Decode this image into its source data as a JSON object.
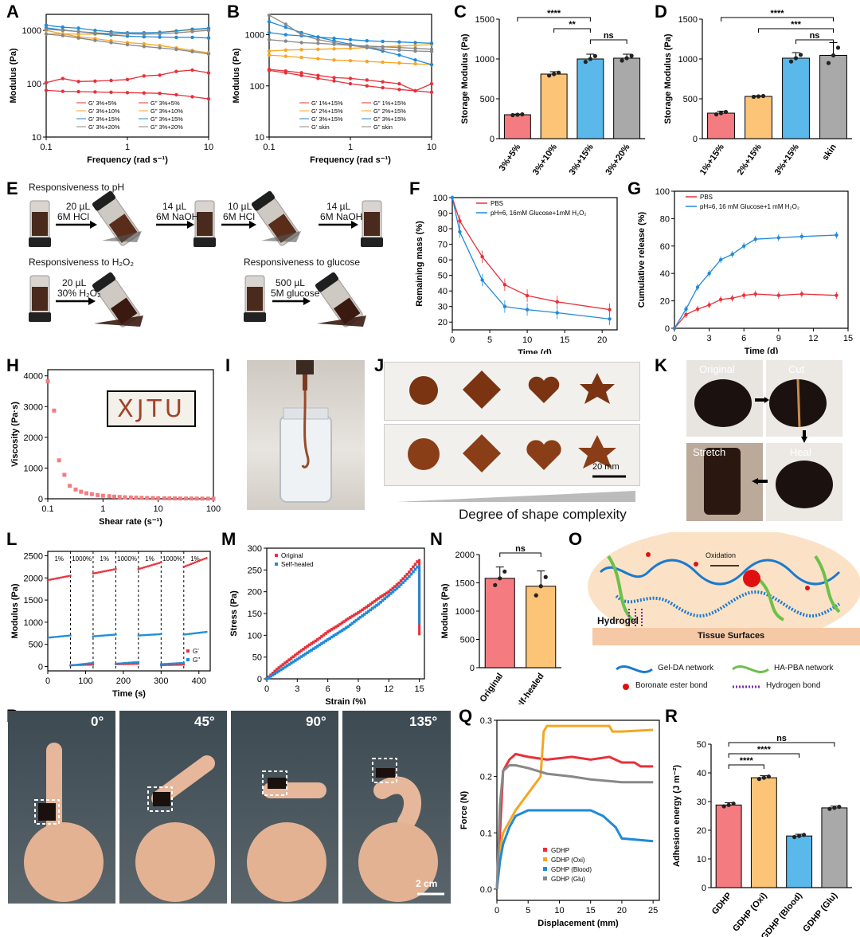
{
  "panel_labels": {
    "A": "A",
    "B": "B",
    "C": "C",
    "D": "D",
    "E": "E",
    "F": "F",
    "G": "G",
    "H": "H",
    "I": "I",
    "J": "J",
    "K": "K",
    "L": "L",
    "M": "M",
    "N": "N",
    "O": "O",
    "P": "P",
    "Q": "Q",
    "R": "R"
  },
  "colors": {
    "red": "#e8303a",
    "orange": "#f5a623",
    "blue": "#1f8ad8",
    "gray": "#888888",
    "bar_red": "#f47c80",
    "bar_orange": "#fbc477",
    "bar_blue": "#5bb8ea",
    "bar_gray": "#a9a9a9"
  },
  "panel_e": {
    "ph_title": "Responsiveness to pH",
    "h2o2_title": "Responsiveness to H₂O₂",
    "glucose_title": "Responsiveness to glucose",
    "steps": [
      {
        "line1": "20 µL",
        "line2": "6M HCl"
      },
      {
        "line1": "14 µL",
        "line2": "6M NaOH"
      },
      {
        "line1": "10 µL",
        "line2": "6M HCl"
      },
      {
        "line1": "14 µL",
        "line2": "6M NaOH"
      },
      {
        "line1": "20 µL",
        "line2": "30% H₂O₂"
      },
      {
        "line1": "500 µL",
        "line2": "5M glucose"
      }
    ]
  },
  "panel_h": {
    "inset_text": "XJTU"
  },
  "panel_j": {
    "scale": "20 mm",
    "caption": "Degree of shape complexity"
  },
  "panel_k": {
    "original": "Original",
    "cut": "Cut",
    "heal": "Heal",
    "stretch": "Stretch"
  },
  "panel_o": {
    "oxidation": "Oxidation",
    "hydrogel": "Hydrogel",
    "tissue": "Tissue Surfaces",
    "legend": [
      "Gel-DA network",
      "HA-PBA network",
      "Boronate ester bond",
      "Hydrogen bond"
    ]
  },
  "panel_p": {
    "angles": [
      "0°",
      "45°",
      "90°",
      "135°"
    ],
    "scale": "2 cm"
  },
  "chart_data": [
    {
      "id": "A",
      "type": "line",
      "xlabel": "Frequency (rad s⁻¹)",
      "ylabel": "Modulus (Pa)",
      "xscale": "log",
      "yscale": "log",
      "xlim": [
        0.1,
        10
      ],
      "ylim": [
        10,
        2000
      ],
      "xticks": [
        "0.1",
        "1",
        "10"
      ],
      "yticks": [
        "10",
        "100",
        "1000"
      ],
      "legend_position": "bottom",
      "x": [
        0.1,
        0.16,
        0.25,
        0.4,
        0.63,
        1,
        1.6,
        2.5,
        4,
        6.3,
        10
      ],
      "series": [
        {
          "name": "G' 3%+5%",
          "values": [
            75,
            72,
            71,
            70,
            69,
            68,
            67,
            66,
            62,
            57,
            52
          ]
        },
        {
          "name": "G\" 3%+5%",
          "values": [
            105,
            125,
            110,
            112,
            115,
            120,
            140,
            145,
            170,
            180,
            160
          ]
        },
        {
          "name": "G' 3%+10%",
          "values": [
            1000,
            860,
            760,
            700,
            640,
            590,
            560,
            520,
            470,
            420,
            380
          ]
        },
        {
          "name": "G\" 3%+10%",
          "values": [
            860,
            860,
            850,
            850,
            850,
            860,
            880,
            920,
            980,
            1020,
            1070
          ]
        },
        {
          "name": "G' 3%+15%",
          "values": [
            1120,
            1020,
            950,
            880,
            820,
            780,
            760,
            750,
            740,
            740,
            720
          ]
        },
        {
          "name": "G\" 3%+15%",
          "values": [
            1250,
            1150,
            1100,
            1000,
            940,
            900,
            900,
            920,
            970,
            1050,
            1100
          ]
        },
        {
          "name": "G' 3%+20%",
          "values": [
            850,
            800,
            720,
            650,
            590,
            540,
            500,
            470,
            440,
            400,
            360
          ]
        },
        {
          "name": "G\" 3%+20%",
          "values": [
            1050,
            1000,
            950,
            900,
            870,
            860,
            850,
            860,
            900,
            950,
            1000
          ]
        }
      ]
    },
    {
      "id": "B",
      "type": "line",
      "xlabel": "Frequency (rad s⁻¹)",
      "ylabel": "Modulus (Pa)",
      "xscale": "log",
      "yscale": "log",
      "xlim": [
        0.1,
        10
      ],
      "ylim": [
        10,
        2500
      ],
      "xticks": [
        "0.1",
        "1",
        "10"
      ],
      "yticks": [
        "10",
        "100",
        "1000"
      ],
      "legend_position": "bottom",
      "x": [
        0.1,
        0.16,
        0.25,
        0.4,
        0.63,
        1,
        1.6,
        2.5,
        4,
        6.3,
        10
      ],
      "series": [
        {
          "name": "G' 1%+15%",
          "values": [
            200,
            180,
            160,
            140,
            125,
            110,
            100,
            92,
            85,
            80,
            75
          ]
        },
        {
          "name": "G\" 1%+15%",
          "values": [
            210,
            195,
            180,
            160,
            145,
            140,
            130,
            120,
            110,
            80,
            110
          ]
        },
        {
          "name": "G' 2%+15%",
          "values": [
            480,
            500,
            510,
            520,
            530,
            540,
            560,
            580,
            600,
            620,
            640
          ]
        },
        {
          "name": "G\" 2%+15%",
          "values": [
            400,
            380,
            360,
            340,
            320,
            310,
            300,
            290,
            280,
            270,
            260
          ]
        },
        {
          "name": "G' 3%+15%",
          "values": [
            1100,
            1000,
            950,
            900,
            850,
            800,
            760,
            740,
            720,
            700,
            680
          ]
        },
        {
          "name": "G\" 3%+15%",
          "values": [
            1800,
            1400,
            1100,
            900,
            760,
            650,
            560,
            480,
            400,
            320,
            260
          ]
        },
        {
          "name": "G' skin",
          "values": [
            2400,
            1600,
            1000,
            800,
            700,
            620,
            560,
            520,
            500,
            480,
            470
          ]
        },
        {
          "name": "G\" skin",
          "values": [
            800,
            750,
            700,
            680,
            650,
            620,
            600,
            580,
            560,
            540,
            520
          ]
        }
      ]
    },
    {
      "id": "C",
      "type": "bar",
      "ylabel": "Storage Modulus (Pa)",
      "ylim": [
        0,
        1500
      ],
      "yticks": [
        "0",
        "500",
        "1000",
        "1500"
      ],
      "categories": [
        "3%+5%",
        "3%+10%",
        "3%+15%",
        "3%+20%"
      ],
      "values": [
        300,
        810,
        1000,
        1010
      ],
      "errors": [
        8,
        30,
        60,
        50
      ],
      "significance": [
        {
          "label": "****",
          "from": 0,
          "to": 2
        },
        {
          "label": "**",
          "from": 1,
          "to": 2
        },
        {
          "label": "ns",
          "from": 2,
          "to": 3
        }
      ]
    },
    {
      "id": "D",
      "type": "bar",
      "ylabel": "Storage Modulus (Pa)",
      "ylim": [
        0,
        1500
      ],
      "yticks": [
        "0",
        "500",
        "1000",
        "1500"
      ],
      "categories": [
        "1%+15%",
        "2%+15%",
        "3%+15%",
        "skin"
      ],
      "values": [
        320,
        530,
        1010,
        1045
      ],
      "errors": [
        25,
        8,
        70,
        160
      ],
      "significance": [
        {
          "label": "****",
          "from": 0,
          "to": 3
        },
        {
          "label": "***",
          "from": 1,
          "to": 3
        },
        {
          "label": "ns",
          "from": 2,
          "to": 3
        }
      ]
    },
    {
      "id": "F",
      "type": "line",
      "xlabel": "Time (d)",
      "ylabel": "Remaining mass (%)",
      "xlim": [
        0,
        22
      ],
      "ylim": [
        15,
        100
      ],
      "xticks": [
        "0",
        "5",
        "10",
        "15",
        "20"
      ],
      "yticks": [
        "20",
        "30",
        "40",
        "50",
        "60",
        "70",
        "80",
        "90",
        "100"
      ],
      "legend_position": "top-right",
      "x": [
        0,
        1,
        4,
        7,
        10,
        14,
        21
      ],
      "series": [
        {
          "name": "PBS",
          "values": [
            100,
            85,
            62,
            44,
            37,
            33,
            28
          ]
        },
        {
          "name": "pH=6, 16mM Glucose+1mM H₂O₂",
          "values": [
            100,
            78,
            47,
            30,
            28,
            26,
            22
          ]
        }
      ]
    },
    {
      "id": "G",
      "type": "line",
      "xlabel": "Time (d)",
      "ylabel": "Cumulative release (%)",
      "xlim": [
        0,
        15
      ],
      "ylim": [
        0,
        100
      ],
      "xticks": [
        "0",
        "3",
        "6",
        "9",
        "12",
        "15"
      ],
      "yticks": [
        "0",
        "20",
        "40",
        "60",
        "80",
        "100"
      ],
      "legend_position": "top-left",
      "x": [
        0,
        1,
        2,
        3,
        4,
        5,
        6,
        7,
        9,
        11,
        14
      ],
      "series": [
        {
          "name": "PBS",
          "values": [
            0,
            10,
            14,
            17,
            21,
            22,
            24,
            25,
            24,
            25,
            24
          ]
        },
        {
          "name": "pH=6, 16 mM Glucose+1 mM H₂O₂",
          "values": [
            0,
            14,
            30,
            40,
            50,
            54,
            60,
            65,
            66,
            67,
            68
          ]
        }
      ]
    },
    {
      "id": "H",
      "type": "scatter",
      "xlabel": "Shear rate (s⁻¹)",
      "ylabel": "Viscosity (Pa·s)",
      "xscale": "log",
      "xlim": [
        0.1,
        100
      ],
      "ylim": [
        0,
        4200
      ],
      "xticks": [
        "0.1",
        "1",
        "10",
        "100"
      ],
      "yticks": [
        "0",
        "1000",
        "2000",
        "3000",
        "4000"
      ],
      "x": [
        0.1,
        0.13,
        0.16,
        0.2,
        0.25,
        0.32,
        0.4,
        0.5,
        0.63,
        0.8,
        1,
        1.3,
        1.6,
        2,
        2.5,
        3.2,
        4,
        5,
        6.3,
        8,
        10,
        13,
        16,
        20,
        25,
        32,
        40,
        50,
        63,
        80,
        100
      ],
      "values": [
        3820,
        2870,
        1250,
        780,
        420,
        300,
        230,
        180,
        150,
        120,
        100,
        85,
        70,
        60,
        50,
        42,
        36,
        30,
        26,
        22,
        18,
        16,
        14,
        12,
        10,
        9,
        8,
        7,
        6,
        5,
        5
      ]
    },
    {
      "id": "L",
      "type": "scatter",
      "xlabel": "Time (s)",
      "ylabel": "Modulus (Pa)",
      "xlim": [
        0,
        430
      ],
      "ylim": [
        -100,
        2600
      ],
      "xticks": [
        "0",
        "100",
        "200",
        "300",
        "400"
      ],
      "yticks": [
        "0",
        "500",
        "1000",
        "1500",
        "2000",
        "2500"
      ],
      "legend_position": "bottom-right",
      "strain_labels": [
        "1%",
        "1000%",
        "1%",
        "1000%",
        "1%",
        "1000%",
        "1%"
      ],
      "segments": [
        0,
        60,
        120,
        180,
        240,
        300,
        360,
        420
      ],
      "series": [
        {
          "name": "G'",
          "segment_values": [
            [
              1950,
              2050
            ],
            [
              30,
              40
            ],
            [
              2100,
              2200
            ],
            [
              50,
              60
            ],
            [
              2200,
              2350
            ],
            [
              30,
              40
            ],
            [
              2250,
              2450
            ]
          ]
        },
        {
          "name": "G\"",
          "segment_values": [
            [
              650,
              700
            ],
            [
              20,
              80
            ],
            [
              680,
              720
            ],
            [
              60,
              100
            ],
            [
              700,
              730
            ],
            [
              50,
              80
            ],
            [
              720,
              780
            ]
          ]
        }
      ]
    },
    {
      "id": "M",
      "type": "scatter",
      "xlabel": "Strain (%)",
      "ylabel": "Stress (Pa)",
      "xlim": [
        0,
        15.5
      ],
      "ylim": [
        0,
        300
      ],
      "xticks": [
        "0",
        "3",
        "6",
        "9",
        "12",
        "15"
      ],
      "yticks": [
        "0",
        "50",
        "100",
        "150",
        "200",
        "250",
        "300"
      ],
      "legend_position": "top-left",
      "series": [
        {
          "name": "Original",
          "x": [
            0,
            1,
            2,
            3,
            4,
            5,
            6,
            7,
            8,
            9,
            10,
            11,
            12,
            13,
            14,
            15
          ],
          "values": [
            0,
            22,
            40,
            58,
            75,
            90,
            108,
            122,
            138,
            152,
            168,
            185,
            200,
            220,
            245,
            275
          ]
        },
        {
          "name": "Self-healed",
          "x": [
            0,
            1,
            2,
            3,
            4,
            5,
            6,
            7,
            8,
            9,
            10,
            11,
            12,
            13,
            14,
            15
          ],
          "values": [
            0,
            15,
            30,
            45,
            60,
            75,
            90,
            105,
            120,
            138,
            155,
            172,
            192,
            212,
            235,
            262
          ]
        }
      ]
    },
    {
      "id": "N",
      "type": "bar",
      "ylabel": "Modulus (Pa)",
      "ylim": [
        0,
        2000
      ],
      "yticks": [
        "0",
        "500",
        "1000",
        "1500",
        "2000"
      ],
      "categories": [
        "Original",
        "Self-healed"
      ],
      "values": [
        1580,
        1440
      ],
      "errors": [
        200,
        270
      ],
      "significance": [
        {
          "label": "ns",
          "from": 0,
          "to": 1
        }
      ]
    },
    {
      "id": "Q",
      "type": "line",
      "xlabel": "Displacement (mm)",
      "ylabel": "Force (N)",
      "xlim": [
        0,
        26
      ],
      "ylim": [
        -0.02,
        0.3
      ],
      "xticks": [
        "0",
        "5",
        "10",
        "15",
        "20",
        "25"
      ],
      "yticks": [
        "0.0",
        "0.1",
        "0.2",
        "0.3"
      ],
      "legend_position": "bottom-left",
      "series": [
        {
          "name": "GDHP",
          "x": [
            0,
            0.5,
            1,
            2,
            3,
            5,
            8,
            12,
            15,
            18,
            20,
            22,
            23,
            25
          ],
          "values": [
            0,
            0.1,
            0.21,
            0.23,
            0.24,
            0.235,
            0.23,
            0.235,
            0.23,
            0.235,
            0.225,
            0.225,
            0.218,
            0.218
          ]
        },
        {
          "name": "GDHP (Oxi)",
          "x": [
            0,
            0.5,
            1,
            2,
            3,
            5,
            7,
            7.5,
            8,
            12,
            18,
            18.5,
            20,
            25
          ],
          "values": [
            0,
            0.07,
            0.1,
            0.12,
            0.14,
            0.17,
            0.2,
            0.28,
            0.29,
            0.29,
            0.29,
            0.28,
            0.28,
            0.283
          ]
        },
        {
          "name": "GDHP (Blood)",
          "x": [
            0,
            0.5,
            1,
            2,
            3,
            5,
            8,
            10,
            12,
            15,
            17,
            19,
            20,
            25
          ],
          "values": [
            0,
            0.05,
            0.08,
            0.11,
            0.13,
            0.14,
            0.14,
            0.14,
            0.14,
            0.14,
            0.13,
            0.11,
            0.09,
            0.085
          ]
        },
        {
          "name": "GDHP (Glu)",
          "x": [
            0,
            0.5,
            1,
            2,
            3,
            5,
            8,
            12,
            15,
            20,
            25
          ],
          "values": [
            0,
            0.15,
            0.21,
            0.22,
            0.22,
            0.215,
            0.205,
            0.2,
            0.195,
            0.19,
            0.19
          ]
        }
      ]
    },
    {
      "id": "R",
      "type": "bar",
      "ylabel": "Adhesion energy (J m⁻²)",
      "ylim": [
        0,
        50
      ],
      "yticks": [
        "0",
        "10",
        "20",
        "30",
        "40",
        "50"
      ],
      "categories": [
        "GDHP",
        "GDHP (Oxi)",
        "GDHP (Blood)",
        "GDHP (Glu)"
      ],
      "values": [
        28.8,
        38.3,
        18,
        27.8
      ],
      "errors": [
        0.8,
        0.7,
        0.6,
        0.6
      ],
      "significance": [
        {
          "label": "ns",
          "from": 0,
          "to": 3
        },
        {
          "label": "****",
          "from": 0,
          "to": 2
        },
        {
          "label": "****",
          "from": 0,
          "to": 1
        }
      ]
    }
  ]
}
